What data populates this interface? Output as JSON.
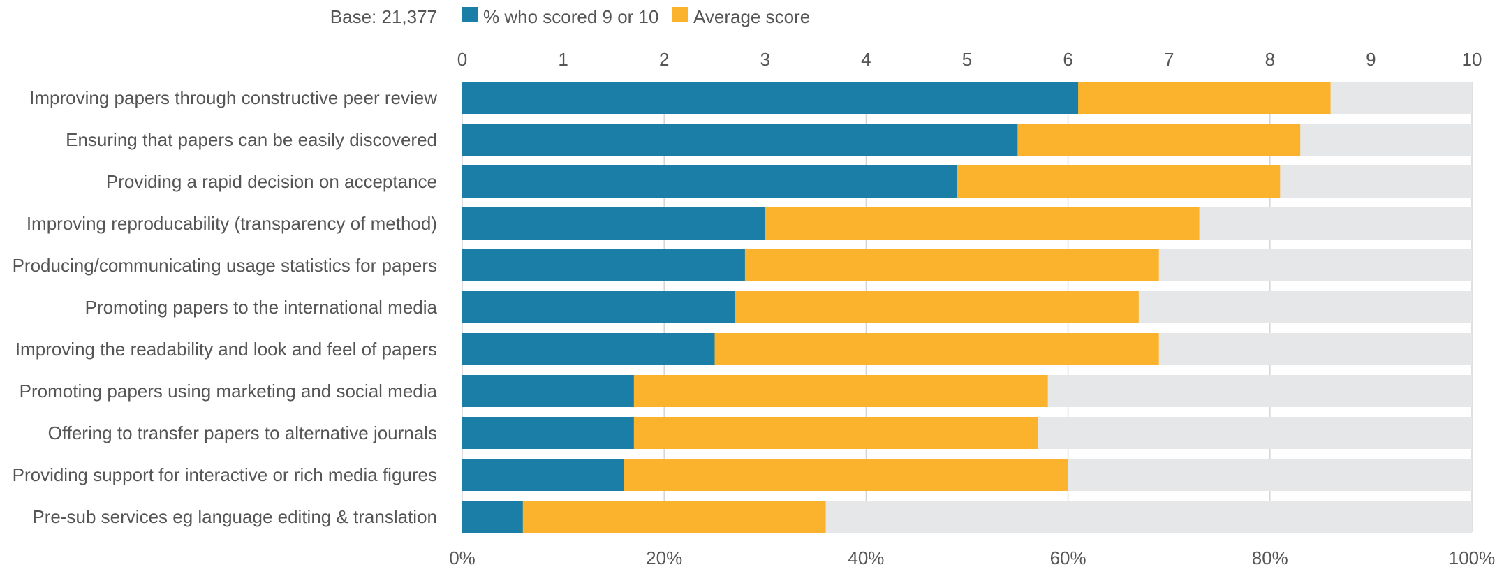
{
  "chart_data": {
    "type": "bar",
    "orientation": "horizontal",
    "stacked": false,
    "base_label": "Base: 21,377",
    "legend": [
      {
        "name": "% who scored 9 or 10",
        "color": "#1b7ea6"
      },
      {
        "name": "Average score",
        "color": "#fbb32e"
      }
    ],
    "legend_placement": "top",
    "categories": [
      "Improving papers through constructive peer review",
      "Ensuring that papers can be easily discovered",
      "Providing a rapid decision on acceptance",
      "Improving reproducability (transparency of method)",
      "Producing/communicating usage statistics for papers",
      "Promoting papers to the international media",
      "Improving the readability and look and feel of papers",
      "Promoting papers using marketing and social media",
      "Offering to transfer papers to alternative journals",
      "Providing support for interactive or rich media figures",
      "Pre-sub services eg language editing & translation"
    ],
    "series": [
      {
        "name": "% who scored 9 or 10",
        "axis": "bottom",
        "unit": "%",
        "values": [
          61,
          55,
          49,
          30,
          28,
          27,
          25,
          17,
          17,
          16,
          6
        ]
      },
      {
        "name": "Average score",
        "axis": "top",
        "values": [
          8.6,
          8.3,
          8.1,
          7.3,
          6.9,
          6.7,
          6.9,
          5.8,
          5.7,
          6.0,
          3.6
        ]
      }
    ],
    "top_axis": {
      "range": [
        0,
        10
      ],
      "ticks": [
        "0",
        "1",
        "2",
        "3",
        "4",
        "5",
        "6",
        "7",
        "8",
        "9",
        "10"
      ]
    },
    "bottom_axis": {
      "range": [
        0,
        100
      ],
      "ticks": [
        "0%",
        "20%",
        "40%",
        "60%",
        "80%",
        "100%"
      ]
    },
    "track_max": 10,
    "grid": true,
    "colors": {
      "track": "#e6e7e8",
      "grid": "#d5d5d5",
      "text": "#555555"
    }
  }
}
